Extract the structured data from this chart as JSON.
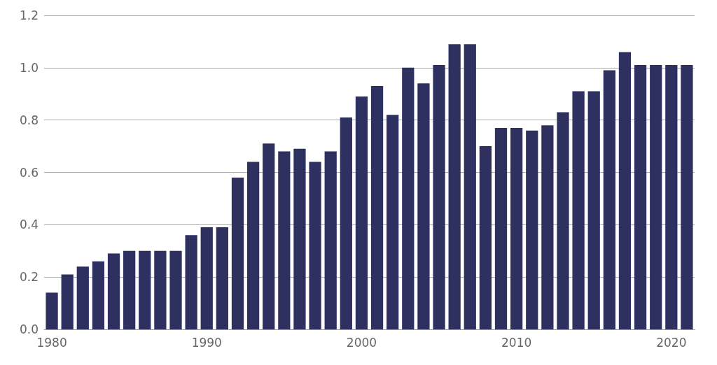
{
  "chart_data": {
    "type": "bar",
    "categories": [
      "1980",
      null,
      null,
      null,
      null,
      null,
      null,
      null,
      null,
      null,
      "1990",
      null,
      null,
      null,
      null,
      null,
      null,
      null,
      null,
      null,
      "2000",
      null,
      null,
      null,
      null,
      null,
      null,
      null,
      null,
      null,
      "2010",
      null,
      null,
      null,
      null,
      null,
      null,
      null,
      null,
      null,
      "2020",
      null
    ],
    "values": [
      0.14,
      0.21,
      0.24,
      0.26,
      0.29,
      0.3,
      0.3,
      0.3,
      0.3,
      0.36,
      0.39,
      0.39,
      0.58,
      0.64,
      0.71,
      0.68,
      0.69,
      0.64,
      0.68,
      0.81,
      0.89,
      0.93,
      0.82,
      1.0,
      0.94,
      1.01,
      1.09,
      1.09,
      0.7,
      0.77,
      0.77,
      0.76,
      0.78,
      0.83,
      0.91,
      0.91,
      0.99,
      1.06,
      1.01,
      1.01,
      1.01,
      1.01
    ],
    "color": "#2e3160",
    "ylim": [
      0,
      1.2
    ],
    "yticks": [
      {
        "value": 0,
        "label": "0.0"
      },
      0.2,
      0.4,
      0.6,
      0.8,
      {
        "value": 1,
        "label": "1.0"
      },
      1.2
    ],
    "grid": "y"
  }
}
